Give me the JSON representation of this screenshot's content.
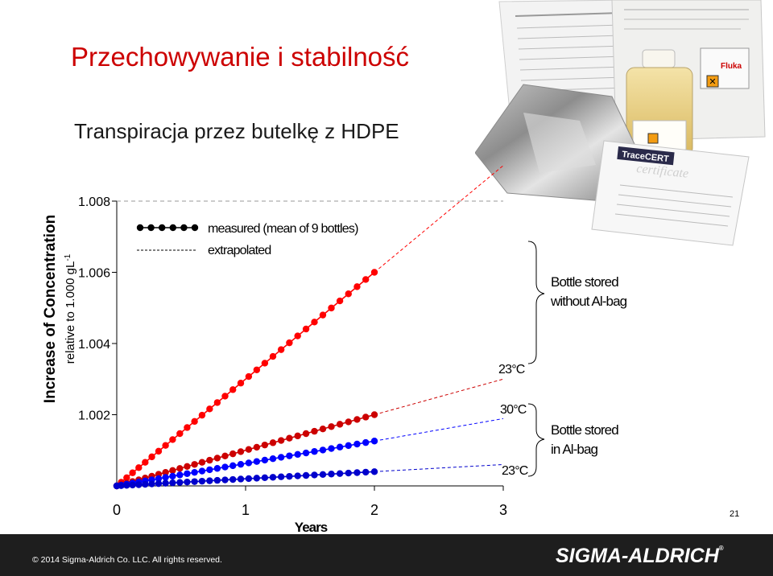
{
  "slide": {
    "title": "Przechowywanie i stabilność",
    "subtitle": "Transpiracja przez butelkę z HDPE",
    "page_number": "21",
    "copyright": "© 2014 Sigma-Aldrich Co. LLC. All rights reserved.",
    "brand": "SIGMA-ALDRICH",
    "brand_mark": "®"
  },
  "photo": {
    "description_icon": "product-photo-tracecert-bottle-bag-certificates",
    "labels": {
      "tracecert": "TraceCERT",
      "certificate": "certificate",
      "fluka": "Fluka"
    }
  },
  "chart_data": {
    "type": "line",
    "ylabel_main": "Increase of Concentration",
    "ylabel_sub": "relative to 1.000 gL",
    "ylabel_sup": "-1",
    "xlabel": "Years",
    "x_ticks": [
      "0",
      "1",
      "2",
      "3"
    ],
    "y_ticks": [
      "1.002",
      "1.004",
      "1.006",
      "1.008"
    ],
    "xlim": [
      0,
      3
    ],
    "ylim": [
      1.0,
      1.008
    ],
    "legend": {
      "measured": "measured (mean of 9 bottles)",
      "extrapolated": "extrapolated"
    },
    "series": [
      {
        "label": "23°C",
        "group": "without Al-bag",
        "color": "#ff0000",
        "slope": 0.003,
        "measured_x_max": 2.0,
        "extrapolated_to": 3.0
      },
      {
        "label": "30°C",
        "group": "in Al-bag",
        "color": "#cc0000",
        "slope": 0.001,
        "measured_x_max": 2.0,
        "extrapolated_to": 3.0
      },
      {
        "label": "",
        "group": "in Al-bag",
        "color": "#0000ff",
        "slope": 0.00063,
        "measured_x_max": 2.0,
        "extrapolated_to": 3.0
      },
      {
        "label": "23°C",
        "group": "in Al-bag",
        "color": "#0000cc",
        "slope": 0.0002,
        "measured_x_max": 2.0,
        "extrapolated_to": 3.0
      }
    ],
    "annotations": {
      "label_23_top": "23°C",
      "label_30": "30°C",
      "label_23_bottom": "23°C",
      "group_top": [
        "Bottle stored",
        "without Al-bag"
      ],
      "group_bottom": [
        "Bottle stored",
        "in Al-bag"
      ]
    }
  }
}
